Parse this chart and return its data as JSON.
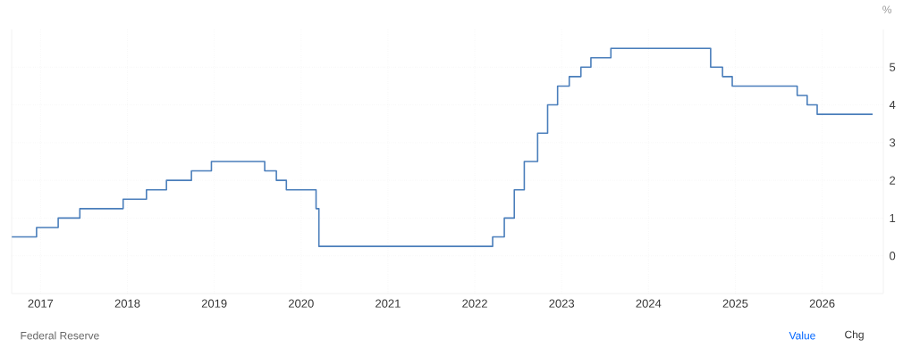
{
  "chart_data": {
    "type": "step",
    "ylabel": "%",
    "x": [
      "2016-09-01",
      "2016-12-15",
      "2017-03-16",
      "2017-06-15",
      "2017-12-14",
      "2018-03-22",
      "2018-06-14",
      "2018-09-27",
      "2018-12-20",
      "2019-08-01",
      "2019-09-19",
      "2019-10-31",
      "2020-03-04",
      "2020-03-16",
      "2022-03-17",
      "2022-05-05",
      "2022-06-16",
      "2022-07-28",
      "2022-09-22",
      "2022-11-03",
      "2022-12-15",
      "2023-02-02",
      "2023-03-23",
      "2023-05-04",
      "2023-07-27",
      "2024-09-19",
      "2024-11-08",
      "2024-12-19",
      "2025-09-18",
      "2025-10-30",
      "2025-12-11",
      "2026-08-01"
    ],
    "values": [
      0.5,
      0.75,
      1.0,
      1.25,
      1.5,
      1.75,
      2.0,
      2.25,
      2.5,
      2.25,
      2.0,
      1.75,
      1.25,
      0.25,
      0.5,
      1.0,
      1.75,
      2.5,
      3.25,
      4.0,
      4.5,
      4.75,
      5.0,
      5.25,
      5.5,
      5.0,
      4.75,
      4.5,
      4.25,
      4.0,
      3.75,
      3.75
    ],
    "color": "#4a7ebb",
    "xlim": [
      "2016-09-01",
      "2026-09-15"
    ],
    "xticks": [
      "2017",
      "2018",
      "2019",
      "2020",
      "2021",
      "2022",
      "2023",
      "2024",
      "2025",
      "2026"
    ],
    "ylim": [
      -1,
      6
    ],
    "yticks": [
      0,
      1,
      2,
      3,
      4,
      5
    ],
    "grid": true,
    "annotations": [
      "Federal Reserve",
      "Value",
      "Chg"
    ]
  }
}
